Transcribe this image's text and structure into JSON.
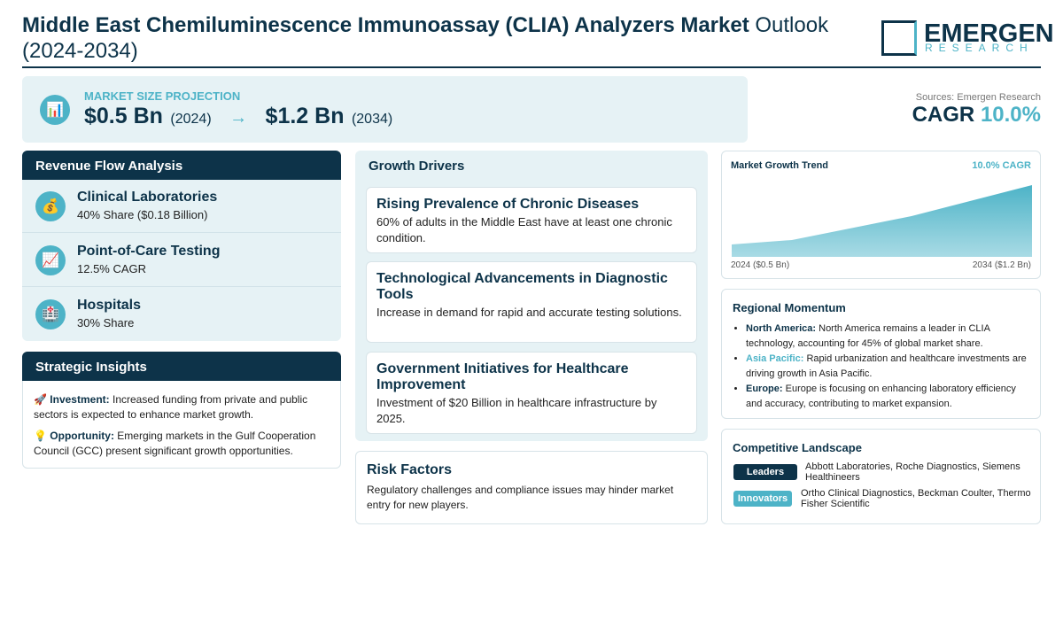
{
  "header": {
    "title_bold": "Middle East Chemiluminescence Immunoassay (CLIA) Analyzers Market",
    "title_rest": "Outlook (2024-2034)",
    "logo_main": "EMERGEN",
    "logo_sub": "RESEARCH"
  },
  "projection": {
    "icon": "📊",
    "label": "MARKET SIZE PROJECTION",
    "start_value": "$0.5 Bn",
    "start_year": "(2024)",
    "arrow": "→",
    "end_value": "$1.2 Bn",
    "end_year": "(2034)",
    "source": "Sources: Emergen Research",
    "cagr_label": "CAGR",
    "cagr_value": "10.0%"
  },
  "revenue_flow": {
    "title": "Revenue Flow Analysis",
    "items": [
      {
        "icon": "💰",
        "name": "Clinical Laboratories",
        "detail": "40% Share ($0.18 Billion)"
      },
      {
        "icon": "📈",
        "name": "Point-of-Care Testing",
        "detail": "12.5% CAGR"
      },
      {
        "icon": "🏥",
        "name": "Hospitals",
        "detail": "30% Share"
      }
    ]
  },
  "strategic_insights": {
    "title": "Strategic Insights",
    "items": [
      {
        "icon": "🚀",
        "label": "Investment:",
        "text": "Increased funding from private and public sectors is expected to enhance market growth."
      },
      {
        "icon": "💡",
        "label": "Opportunity:",
        "text": "Emerging markets in the Gulf Cooperation Council (GCC) present significant growth opportunities."
      }
    ]
  },
  "growth_drivers": {
    "title": "Growth Drivers",
    "items": [
      {
        "title": "Rising Prevalence of Chronic Diseases",
        "text": "60% of adults in the Middle East have at least one chronic condition."
      },
      {
        "title": "Technological Advancements in Diagnostic Tools",
        "text": "Increase in demand for rapid and accurate testing solutions."
      },
      {
        "title": "Government Initiatives for Healthcare Improvement",
        "text": "Investment of $20 Billion in healthcare infrastructure by 2025."
      }
    ]
  },
  "risk_factors": {
    "title": "Risk Factors",
    "text": "Regulatory challenges and compliance issues may hinder market entry for new players."
  },
  "growth_trend": {
    "title": "Market Growth Trend",
    "badge": "10.0% CAGR",
    "start_label": "2024 ($0.5 Bn)",
    "end_label": "2034 ($1.2 Bn)"
  },
  "regional_momentum": {
    "title": "Regional Momentum",
    "items": [
      {
        "region": "North America:",
        "text": "North America remains a leader in CLIA technology, accounting for 45% of global market share."
      },
      {
        "region": "Asia Pacific:",
        "text": "Rapid urbanization and healthcare investments are driving growth in Asia Pacific."
      },
      {
        "region": "Europe:",
        "text": "Europe is focusing on enhancing laboratory efficiency and accuracy, contributing to market expansion."
      }
    ]
  },
  "competitive_landscape": {
    "title": "Competitive Landscape",
    "groups": [
      {
        "tag": "Leaders",
        "companies": "Abbott Laboratories, Roche Diagnostics, Siemens Healthineers"
      },
      {
        "tag": "Innovators",
        "companies": "Ortho Clinical Diagnostics, Beckman Coulter, Thermo Fisher Scientific"
      }
    ]
  }
}
